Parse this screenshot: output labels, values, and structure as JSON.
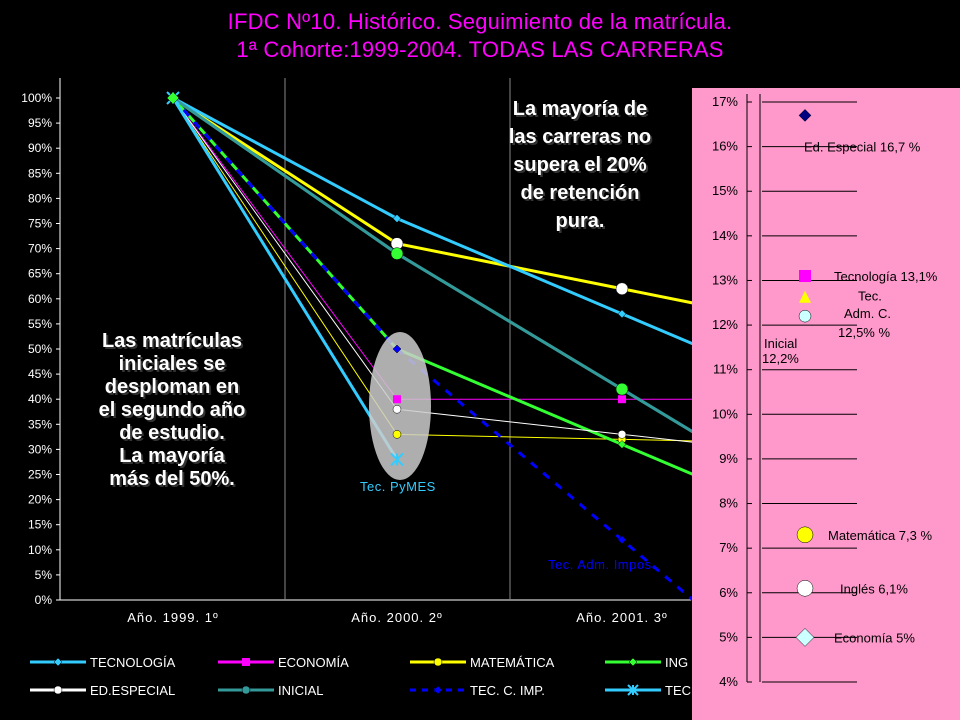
{
  "title": {
    "line1": "IFDC Nº10. Histórico. Seguimiento de la matrícula.",
    "line2": "1ª Cohorte:1999-2004. TODAS LAS CARRERAS"
  },
  "annotations": {
    "left_lines": [
      "Las matrículas",
      "iniciales se",
      "desploman en",
      "el segundo año",
      "de estudio.",
      "La mayoría",
      "más del 50%."
    ],
    "right_lines": [
      "La mayoría de",
      "las carreras no",
      "supera el 20%",
      "de retención",
      "pura."
    ],
    "tec_pymes": "Tec. PyMES",
    "tec_adm_impos": "Tec. Adm. Impos."
  },
  "colors": {
    "background": "#000000",
    "title": "#ff00ff",
    "panel": "#ff99cc",
    "tecnologia": "#33ccff",
    "economia": "#ff00ff",
    "matematica": "#ffff00",
    "ingles": "#33ff33",
    "ed_especial": "#ffffff",
    "inicial": "#339999",
    "tec_c_imp": "#0000ff",
    "tec_pymes": "#33ccff",
    "axis_text": "#ffffff",
    "grid": "#ffffff"
  },
  "chart_data": [
    {
      "type": "line",
      "categories": [
        "Año. 1999. 1º",
        "Año. 2000. 2º",
        "Año. 2001. 3º"
      ],
      "ylim": [
        0,
        100
      ],
      "y_ticks": [
        "0%",
        "5%",
        "10%",
        "15%",
        "20%",
        "25%",
        "30%",
        "35%",
        "40%",
        "45%",
        "50%",
        "55%",
        "60%",
        "65%",
        "70%",
        "75%",
        "80%",
        "85%",
        "90%",
        "95%",
        "100%"
      ],
      "grid": "vertical",
      "legend_position": "bottom",
      "series": [
        {
          "name": "TECNOLOGÍA",
          "values": [
            100,
            76,
            57
          ],
          "color_key": "tecnologia",
          "marker": "diamond",
          "dash": false
        },
        {
          "name": "ECONOMÍA",
          "values": [
            100,
            40,
            40
          ],
          "color_key": "economia",
          "marker": "square",
          "dash": false
        },
        {
          "name": "MATEMÁTICA",
          "values": [
            100,
            33,
            32
          ],
          "color_key": "matematica",
          "marker": "circle",
          "dash": false
        },
        {
          "name": "ING",
          "values": [
            100,
            50,
            31
          ],
          "color_key": "ingles",
          "marker": "diamond",
          "dash": false
        },
        {
          "name": "ED.ESPECIAL",
          "values": [
            100,
            38,
            33
          ],
          "color_key": "ed_especial",
          "marker": "circle",
          "dash": false
        },
        {
          "name": "INICIAL",
          "values": [
            100,
            69,
            42
          ],
          "color_key": "inicial",
          "marker": "circle",
          "dash": false
        },
        {
          "name": "TEC. C. IMP.",
          "values": [
            100,
            50,
            12
          ],
          "color_key": "tec_c_imp",
          "marker": "diamond",
          "dash": true
        },
        {
          "name": "TEC",
          "values": [
            100,
            28,
            null
          ],
          "color_key": "tec_pymes",
          "marker": "x",
          "dash": false
        }
      ],
      "extra_series_visible": [
        {
          "values": [
            100,
            71,
            62
          ],
          "color_key": "matematica",
          "marker": "bigcircle"
        },
        {
          "values": [
            100,
            69,
            42
          ],
          "color_key": "ingles",
          "marker": "bigcircle"
        }
      ]
    },
    {
      "type": "scatter",
      "ylim": [
        4,
        17
      ],
      "y_ticks": [
        "4%",
        "5%",
        "6%",
        "7%",
        "8%",
        "9%",
        "10%",
        "11%",
        "12%",
        "13%",
        "14%",
        "15%",
        "16%",
        "17%"
      ],
      "points": [
        {
          "label": "Ed. Especial 16,7 %",
          "value": 16.7,
          "marker": "diamond",
          "color": "#000080"
        },
        {
          "label": "Tecnología 13,1%",
          "value": 13.1,
          "marker": "square",
          "color": "#ff00ff"
        },
        {
          "label": "Tec. Adm. C. 12,5% %",
          "value": 12.5,
          "marker": "triangle",
          "color": "#ffff00"
        },
        {
          "label": "Inicial 12,2%",
          "value": 12.2,
          "marker": "circle",
          "color": "#ccffff"
        },
        {
          "label": "Matemática 7,3 %",
          "value": 7.3,
          "marker": "circle",
          "color": "#ffff00"
        },
        {
          "label": "Inglés 6,1%",
          "value": 6.1,
          "marker": "circle",
          "color": "#ffffff"
        },
        {
          "label": "Economía 5%",
          "value": 5,
          "marker": "diamond",
          "color": "#ccffff"
        }
      ],
      "label_lines": {
        "ed_especial": "Ed. Especial 16,7 %",
        "tecnologia": "Tecnología 13,1%",
        "tec_adm_1": "Tec.",
        "tec_adm_2": "Adm. C.",
        "tec_adm_3": "12,5% %",
        "inicial_1": "Inicial",
        "inicial_2": "12,2%",
        "matematica": "Matemática 7,3 %",
        "ingles": "Inglés 6,1%",
        "economia": "Economía 5%"
      }
    }
  ]
}
